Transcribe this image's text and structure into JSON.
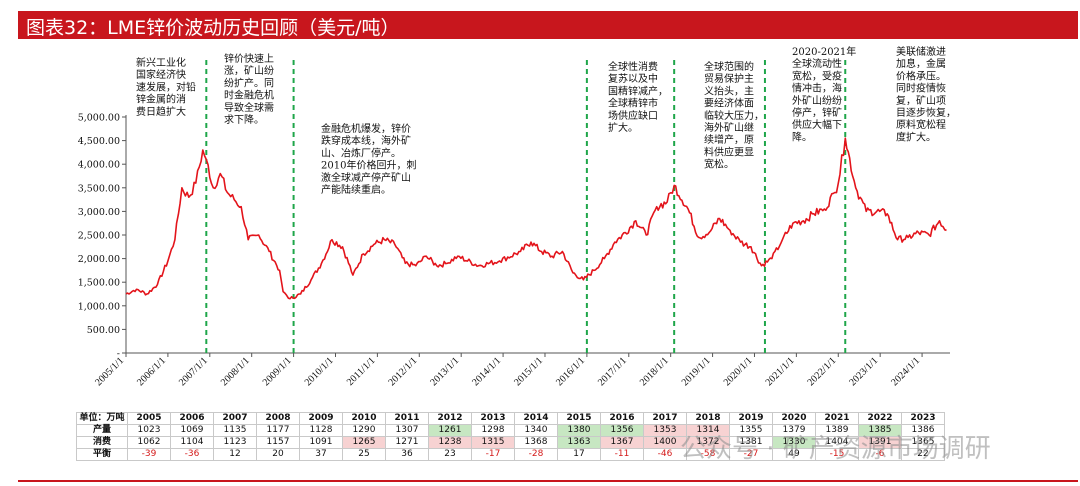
{
  "title": "图表32：LME锌价波动历史回顾（美元/吨）",
  "watermark": "公众号 · 矿产资源市场调研",
  "chart_data": {
    "type": "line",
    "title": "",
    "xlabel": "",
    "ylabel": "",
    "series_color": "#e3141b",
    "event_line_color": "#1fa64a",
    "ylim": [
      0,
      5000
    ],
    "yticks": [
      "-",
      "500.00",
      "1,000.00",
      "1,500.00",
      "2,000.00",
      "2,500.00",
      "3,000.00",
      "3,500.00",
      "4,000.00",
      "4,500.00",
      "5,000.00"
    ],
    "xticks": [
      "2005/1/1",
      "2006/1/1",
      "2007/1/1",
      "2008/1/1",
      "2009/1/1",
      "2010/1/1",
      "2011/1/1",
      "2012/1/1",
      "2013/1/1",
      "2014/1/1",
      "2015/1/1",
      "2016/1/1",
      "2017/1/1",
      "2018/1/1",
      "2019/1/1",
      "2020/1/1",
      "2021/1/1",
      "2022/1/1",
      "2023/1/1",
      "2024/1/1"
    ],
    "x": [
      "2005-01",
      "2005-04",
      "2005-07",
      "2005-10",
      "2006-01",
      "2006-03",
      "2006-05",
      "2006-07",
      "2006-09",
      "2006-11",
      "2006-12",
      "2007-02",
      "2007-04",
      "2007-06",
      "2007-08",
      "2007-10",
      "2007-12",
      "2008-03",
      "2008-06",
      "2008-09",
      "2008-10",
      "2008-12",
      "2009-03",
      "2009-06",
      "2009-09",
      "2009-12",
      "2010-03",
      "2010-06",
      "2010-09",
      "2010-12",
      "2011-03",
      "2011-06",
      "2011-09",
      "2011-12",
      "2012-03",
      "2012-06",
      "2012-09",
      "2012-12",
      "2013-06",
      "2013-12",
      "2014-06",
      "2014-09",
      "2014-12",
      "2015-03",
      "2015-06",
      "2015-09",
      "2015-12",
      "2016-03",
      "2016-06",
      "2016-09",
      "2016-12",
      "2017-03",
      "2017-06",
      "2017-09",
      "2017-12",
      "2018-02",
      "2018-06",
      "2018-09",
      "2018-12",
      "2019-03",
      "2019-06",
      "2019-09",
      "2019-12",
      "2020-03",
      "2020-06",
      "2020-09",
      "2020-12",
      "2021-03",
      "2021-06",
      "2021-09",
      "2021-12",
      "2022-01",
      "2022-03",
      "2022-06",
      "2022-09",
      "2022-12",
      "2023-03",
      "2023-06",
      "2023-09",
      "2023-12",
      "2024-03",
      "2024-06",
      "2024-08"
    ],
    "values": [
      1250,
      1350,
      1250,
      1450,
      1950,
      2400,
      3500,
      3300,
      3600,
      4300,
      4100,
      3500,
      3800,
      3400,
      3250,
      3100,
      2400,
      2500,
      2150,
      1750,
      1300,
      1150,
      1250,
      1550,
      1900,
      2400,
      2250,
      1650,
      2100,
      2300,
      2400,
      2300,
      1900,
      1850,
      2050,
      1850,
      1900,
      2050,
      1850,
      1950,
      2150,
      2350,
      2150,
      2050,
      2150,
      1700,
      1550,
      1750,
      2000,
      2350,
      2550,
      2800,
      2500,
      3100,
      3200,
      3550,
      3050,
      2450,
      2550,
      2850,
      2600,
      2350,
      2250,
      1850,
      2000,
      2400,
      2750,
      2800,
      2950,
      3050,
      3400,
      3600,
      4550,
      3500,
      3000,
      3000,
      2950,
      2400,
      2450,
      2550,
      2500,
      2800,
      2600
    ],
    "event_dates": [
      "2006-12",
      "2009-01",
      "2016-01",
      "2018-02",
      "2020-04",
      "2022-03"
    ],
    "annotations": [
      {
        "lines": [
          "新兴工业化",
          "国家经济快",
          "速发展，对铅",
          "锌金属的消",
          "费日趋扩大"
        ]
      },
      {
        "lines": [
          "锌价快速上",
          "涨，矿山纷",
          "纷扩产。同",
          "时金融危机",
          "导致全球需",
          "求下降。"
        ]
      },
      {
        "lines": [
          "金融危机爆发，锌价",
          "跌穿成本线，海外矿",
          "山、冶炼厂停产。",
          "2010年价格回升，刺",
          "激全球减产停产矿山",
          "产能陆续重启。"
        ]
      },
      {
        "lines": [
          "全球性消费",
          "复苏以及中",
          "国精锌减产，",
          "全球精锌市",
          "场供应缺口",
          "扩大。"
        ]
      },
      {
        "lines": [
          "全球范围的",
          "贸易保护主",
          "义抬头，主",
          "要经济体面",
          "临较大压力，",
          "海外矿山继",
          "续增产，原",
          "料供应更显",
          "宽松。"
        ]
      },
      {
        "lines": [
          "2020-2021年",
          "全球流动性",
          "宽松，受疫",
          "情冲击，海",
          "外矿山纷纷",
          "停产，锌矿",
          "供应大幅下",
          "降。"
        ]
      },
      {
        "lines": [
          "美联储激进",
          "加息，金属",
          "价格承压。",
          "同时疫情恢",
          "复，矿山项",
          "目逐步恢复，",
          "原料宽松程",
          "度扩大。"
        ]
      }
    ]
  },
  "table": {
    "header": [
      "单位：万吨",
      "2005",
      "2006",
      "2007",
      "2008",
      "2009",
      "2010",
      "2011",
      "2012",
      "2013",
      "2014",
      "2015",
      "2016",
      "2017",
      "2018",
      "2019",
      "2020",
      "2021",
      "2022",
      "2023"
    ],
    "rows": [
      {
        "label": "产量",
        "values": [
          "1023",
          "1069",
          "1135",
          "1177",
          "1128",
          "1290",
          "1307",
          "1261",
          "1298",
          "1340",
          "1380",
          "1356",
          "1353",
          "1314",
          "1355",
          "1379",
          "1389",
          "1385",
          "1386"
        ]
      },
      {
        "label": "消费",
        "values": [
          "1062",
          "1104",
          "1123",
          "1157",
          "1091",
          "1265",
          "1271",
          "1238",
          "1315",
          "1368",
          "1363",
          "1367",
          "1400",
          "1372",
          "1381",
          "1330",
          "1404",
          "1391",
          "1365"
        ]
      },
      {
        "label": "平衡",
        "values": [
          "-39",
          "-36",
          "12",
          "20",
          "37",
          "25",
          "36",
          "23",
          "-17",
          "-28",
          "17",
          "-11",
          "-46",
          "-58",
          "-27",
          "49",
          "-15",
          "-6",
          "22"
        ]
      }
    ]
  }
}
